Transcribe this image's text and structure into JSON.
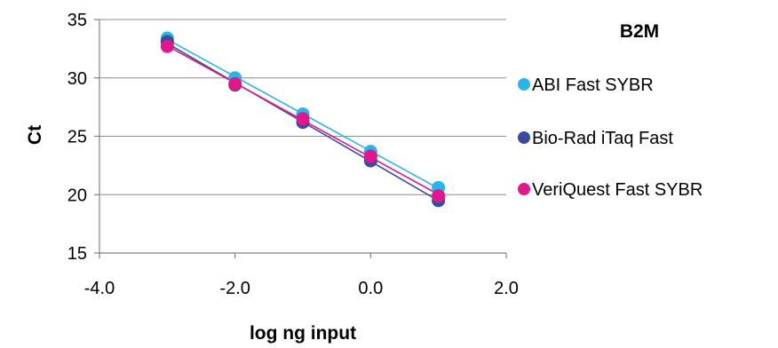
{
  "chart_data": {
    "type": "scatter",
    "title": "B2M",
    "xlabel": "log ng input",
    "ylabel": "Ct",
    "xlim": [
      -4.0,
      2.0
    ],
    "ylim": [
      15,
      35
    ],
    "xticks": [
      -4.0,
      -2.0,
      0.0,
      2.0
    ],
    "xtick_labels": [
      "-4.0",
      "-2.0",
      "0.0",
      "2.0"
    ],
    "yticks": [
      15,
      20,
      25,
      30,
      35
    ],
    "ytick_labels": [
      "15",
      "20",
      "25",
      "30",
      "35"
    ],
    "grid": "horizontal",
    "legend_position": "right",
    "trendlines": true,
    "series": [
      {
        "name": "ABI Fast SYBR",
        "color": "#29b5e8",
        "x": [
          -3,
          -2,
          -1,
          0,
          1
        ],
        "y": [
          33.4,
          30.0,
          26.9,
          23.7,
          20.6
        ]
      },
      {
        "name": "Bio-Rad iTaq Fast",
        "color": "#3b4aa0",
        "x": [
          -3,
          -2,
          -1,
          0,
          1
        ],
        "y": [
          33.1,
          29.4,
          26.2,
          22.9,
          19.5
        ]
      },
      {
        "name": "VeriQuest Fast SYBR",
        "color": "#e0188c",
        "x": [
          -3,
          -2,
          -1,
          0,
          1
        ],
        "y": [
          32.7,
          29.5,
          26.5,
          23.3,
          19.9
        ]
      }
    ]
  }
}
